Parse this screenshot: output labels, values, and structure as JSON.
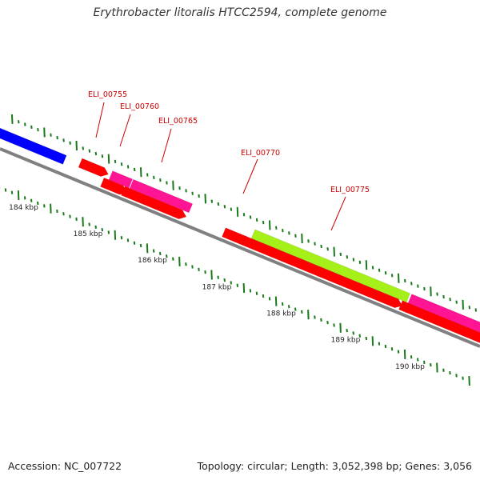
{
  "title": "Erythrobacter litoralis HTCC2594, complete genome",
  "footer": {
    "accession": "Accession: NC_007722",
    "summary": "Topology: circular; Length: 3,052,398 bp; Genes: 3,056"
  },
  "colors": {
    "backbone": "#808080",
    "tick": "#1a7a1a",
    "label": "#cc0000",
    "axis_text": "#222222",
    "feature_red": "#ff0000",
    "feature_magenta": "#ff1493",
    "feature_blue": "#0000ff",
    "feature_green": "#a6f019"
  },
  "axis": {
    "labels": [
      "184 kbp",
      "185 kbp",
      "186 kbp",
      "187 kbp",
      "188 kbp",
      "189 kbp",
      "190 kbp"
    ]
  },
  "gene_labels": [
    "ELI_00755",
    "ELI_00760",
    "ELI_00765",
    "ELI_00770",
    "ELI_00775"
  ]
}
